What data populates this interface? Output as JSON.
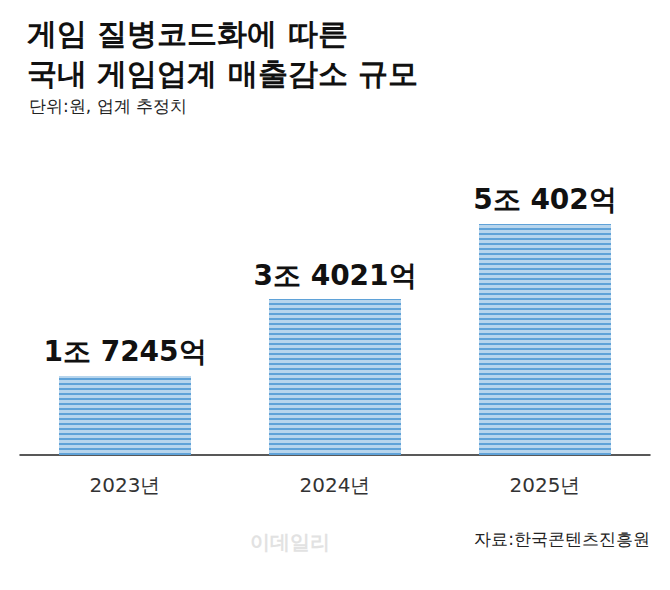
{
  "chart_data": {
    "type": "bar",
    "title": [
      "게임 질병코드화에 따른",
      "국내 게임업계 매출감소 규모"
    ],
    "subtitle": "단위:원, 업계 추정치",
    "source": "자료:한국콘텐츠진흥원",
    "watermark": "이데일리",
    "categories": [
      "2023년",
      "2024년",
      "2025년"
    ],
    "values": [
      1724500000000,
      3402100000000,
      5040200000000
    ],
    "value_labels": [
      "1조 7245억",
      "3조 4021억",
      "5조 402억"
    ],
    "color": "#5fa2d8",
    "ylim": [
      0,
      6000000000000
    ],
    "yticks": [
      0,
      6000000000000
    ],
    "grid": false,
    "data_labels": true,
    "tick_labels": "x"
  }
}
